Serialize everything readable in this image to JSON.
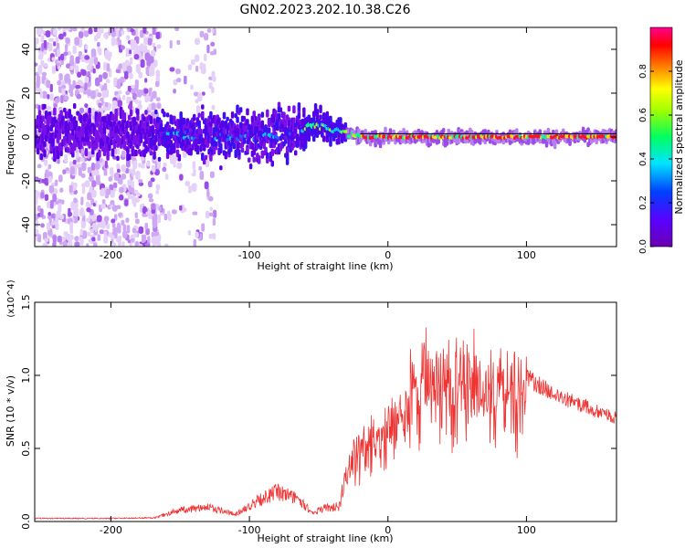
{
  "title": "GN02.2023.202.10.38.C26",
  "colors": {
    "snr_line": "#ee3333",
    "spectrum_low": "#7a00e6",
    "spectrum_high": "#ff0040"
  },
  "chart_data": [
    {
      "type": "heatmap",
      "xlabel": "Height of straight line (km)",
      "ylabel": "Frequency (Hz)",
      "xlim": [
        -255,
        165
      ],
      "ylim": [
        -50,
        50
      ],
      "xticks": [
        -200,
        -100,
        0,
        100
      ],
      "yticks": [
        40,
        20,
        0,
        -20,
        -40
      ],
      "xtick_labels": [
        "-200",
        "-100",
        "0",
        "100"
      ],
      "ytick_labels": [
        "40",
        "20",
        "0",
        "-20",
        "-40"
      ],
      "colorbar": {
        "label": "Normalized spectral amplitude",
        "range": [
          0,
          1
        ],
        "ticks": [
          "0.0",
          "0.2",
          "0.4",
          "0.6",
          "0.8"
        ],
        "colormap": "rainbow (violet-blue-cyan-green-yellow-red-magenta)"
      },
      "center_frequency_trend": [
        {
          "x": -255,
          "y": 2
        },
        {
          "x": -200,
          "y": 2
        },
        {
          "x": -160,
          "y": 1
        },
        {
          "x": -120,
          "y": 0
        },
        {
          "x": -90,
          "y": 0
        },
        {
          "x": -70,
          "y": 2
        },
        {
          "x": -55,
          "y": 5
        },
        {
          "x": -45,
          "y": 5
        },
        {
          "x": -35,
          "y": 3
        },
        {
          "x": -20,
          "y": 0
        },
        {
          "x": 0,
          "y": 0
        },
        {
          "x": 165,
          "y": 0
        }
      ]
    },
    {
      "type": "line",
      "xlabel": "Height of straight line (km)",
      "ylabel": "SNR (10 * v/v)",
      "y_multiplier": "(x10^4)",
      "xlim": [
        -255,
        165
      ],
      "ylim": [
        0,
        15000
      ],
      "xticks": [
        -200,
        -100,
        0,
        100
      ],
      "xtick_labels": [
        "-200",
        "-100",
        "0",
        "100"
      ],
      "yticks": [
        0,
        5000,
        10000,
        15000
      ],
      "ytick_labels": [
        "0.0",
        "0.5",
        "1.0",
        "1.5"
      ],
      "series": [
        {
          "values_envelope": [
            {
              "x": -255,
              "y": 250
            },
            {
              "x": -200,
              "y": 250
            },
            {
              "x": -170,
              "y": 300
            },
            {
              "x": -150,
              "y": 1000
            },
            {
              "x": -130,
              "y": 1300
            },
            {
              "x": -110,
              "y": 600
            },
            {
              "x": -95,
              "y": 1800
            },
            {
              "x": -80,
              "y": 2600
            },
            {
              "x": -65,
              "y": 2000
            },
            {
              "x": -55,
              "y": 800
            },
            {
              "x": -45,
              "y": 1200
            },
            {
              "x": -35,
              "y": 1300
            },
            {
              "x": -28,
              "y": 4500
            },
            {
              "x": -20,
              "y": 5800
            },
            {
              "x": -10,
              "y": 7000
            },
            {
              "x": 0,
              "y": 8000
            },
            {
              "x": 10,
              "y": 9500
            },
            {
              "x": 20,
              "y": 11000
            },
            {
              "x": 40,
              "y": 12000
            },
            {
              "x": 60,
              "y": 11800
            },
            {
              "x": 80,
              "y": 11000
            },
            {
              "x": 100,
              "y": 10500
            },
            {
              "x": 120,
              "y": 9300
            },
            {
              "x": 140,
              "y": 8500
            },
            {
              "x": 165,
              "y": 7500
            }
          ]
        }
      ]
    }
  ]
}
